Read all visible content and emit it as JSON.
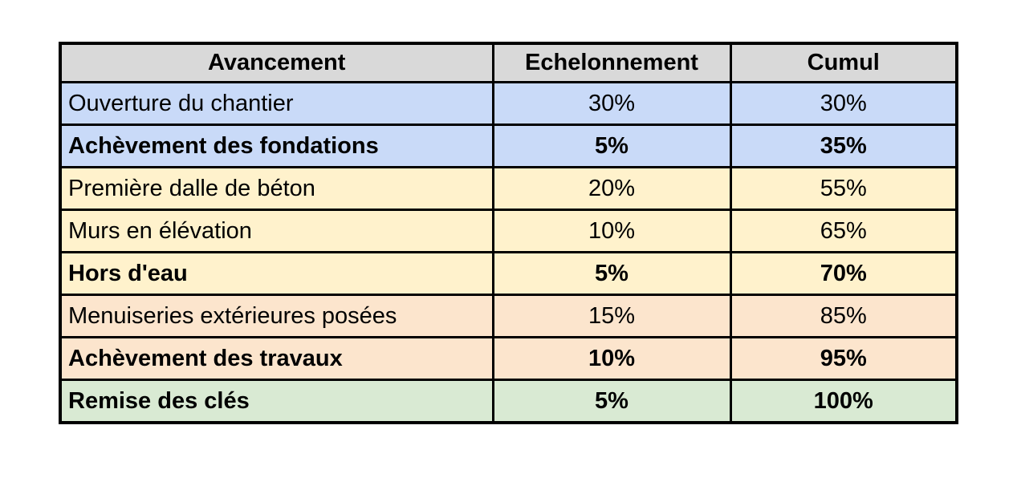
{
  "table": {
    "headers": [
      "Avancement",
      "Echelonnement",
      "Cumul"
    ],
    "rows": [
      {
        "cells": [
          "Ouverture du chantier",
          "30%",
          "30%"
        ],
        "bold": false,
        "bg": "#c9daf8"
      },
      {
        "cells": [
          "Achèvement des fondations",
          "5%",
          "35%"
        ],
        "bold": true,
        "bg": "#c9daf8"
      },
      {
        "cells": [
          "Première dalle de béton",
          "20%",
          "55%"
        ],
        "bold": false,
        "bg": "#fff2cc"
      },
      {
        "cells": [
          "Murs en élévation",
          "10%",
          "65%"
        ],
        "bold": false,
        "bg": "#fff2cc"
      },
      {
        "cells": [
          "Hors d'eau",
          "5%",
          "70%"
        ],
        "bold": true,
        "bg": "#fff2cc"
      },
      {
        "cells": [
          "Menuiseries extérieures posées",
          "15%",
          "85%"
        ],
        "bold": false,
        "bg": "#fce5cd"
      },
      {
        "cells": [
          "Achèvement des travaux",
          "10%",
          "95%"
        ],
        "bold": true,
        "bg": "#fce5cd"
      },
      {
        "cells": [
          "Remise des clés",
          "5%",
          "100%"
        ],
        "bold": true,
        "bg": "#d9ead3"
      }
    ]
  },
  "colors": {
    "header_bg": "#d9d9d9",
    "group_blue": "#c9daf8",
    "group_yellow": "#fff2cc",
    "group_peach": "#fce5cd",
    "group_green": "#d9ead3",
    "border": "#000000",
    "text": "#000000",
    "page_bg": "#ffffff"
  },
  "chart_data": {
    "type": "table",
    "title": "",
    "columns": [
      "Avancement",
      "Echelonnement",
      "Cumul"
    ],
    "rows": [
      [
        "Ouverture du chantier",
        "30%",
        "30%"
      ],
      [
        "Achèvement des fondations",
        "5%",
        "35%"
      ],
      [
        "Première dalle de béton",
        "20%",
        "55%"
      ],
      [
        "Murs en élévation",
        "10%",
        "65%"
      ],
      [
        "Hors d'eau",
        "5%",
        "70%"
      ],
      [
        "Menuiseries extérieures posées",
        "15%",
        "85%"
      ],
      [
        "Achèvement des travaux",
        "10%",
        "95%"
      ],
      [
        "Remise des clés",
        "5%",
        "100%"
      ]
    ],
    "echelonnement_values_pct": [
      30,
      5,
      20,
      10,
      5,
      15,
      10,
      5
    ],
    "cumul_values_pct": [
      30,
      35,
      55,
      65,
      70,
      85,
      95,
      100
    ]
  }
}
